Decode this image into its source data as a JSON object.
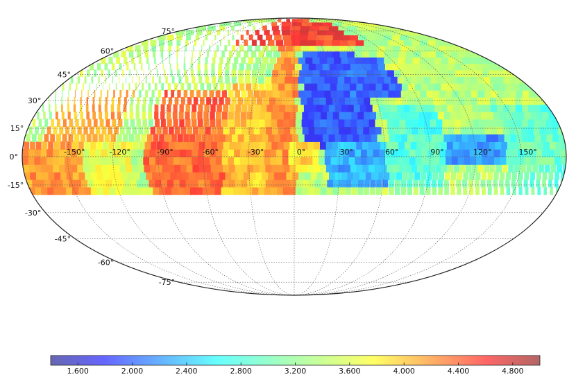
{
  "map": {
    "projection": "Mollweide (all-sky)",
    "grid": true,
    "lon_labels": [
      "-150°",
      "-120°",
      "-90°",
      "-60°",
      "-30°",
      "0°",
      "30°",
      "60°",
      "90°",
      "120°",
      "150°"
    ],
    "lon_values": [
      -150,
      -120,
      -90,
      -60,
      -30,
      0,
      30,
      60,
      90,
      120,
      150
    ],
    "lat_labels": [
      "75°",
      "60°",
      "45°",
      "30°",
      "15°",
      "0°",
      "-15°",
      "-30°",
      "-45°",
      "-60°",
      "-75°"
    ],
    "lat_values": [
      75,
      60,
      45,
      30,
      15,
      0,
      -15,
      -30,
      -45,
      -60,
      -75
    ],
    "coverage_min_dec": -15,
    "colormap": "jet",
    "colormap_range": [
      1.4,
      5.0
    ]
  },
  "colorbar": {
    "tick_labels": [
      "1.600",
      "2.000",
      "2.400",
      "2.800",
      "3.200",
      "3.600",
      "4.000",
      "4.400",
      "4.800"
    ],
    "tick_values": [
      1.6,
      2.0,
      2.4,
      2.8,
      3.2,
      3.6,
      4.0,
      4.4,
      4.8
    ],
    "range": [
      1.4,
      5.0
    ]
  }
}
